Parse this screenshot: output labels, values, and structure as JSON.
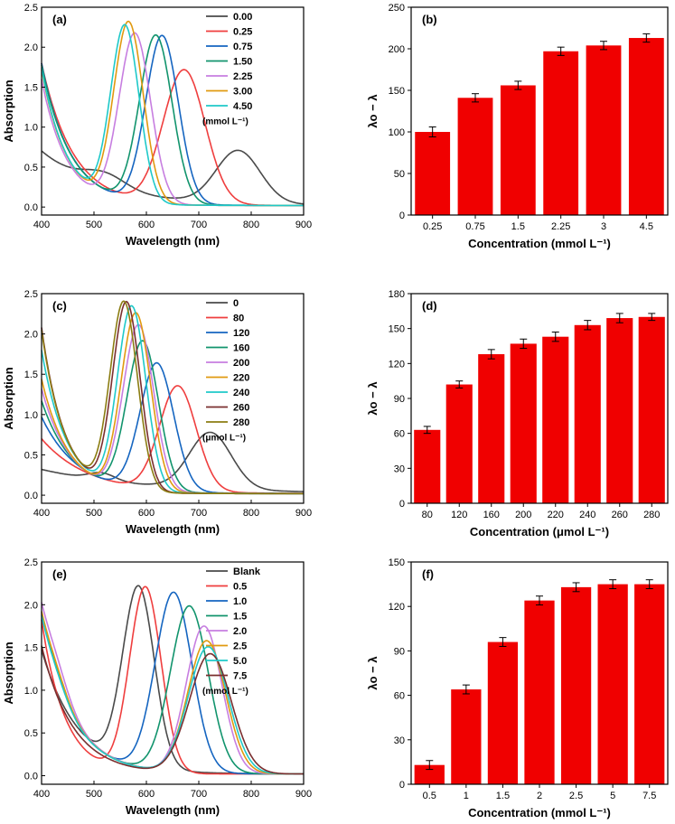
{
  "colors": {
    "c1": "#4a4a4a",
    "c2": "#ef3e3e",
    "c3": "#1565c0",
    "c4": "#12946d",
    "c5": "#c77ee0",
    "c6": "#e09a10",
    "c7": "#1fc9c9",
    "c8": "#7a2f2f",
    "c9": "#8b7d12",
    "bar": "#f00000"
  },
  "chart_data": [
    {
      "panel": "(a)",
      "type": "line",
      "title": "",
      "xlabel": "Wavelength (nm)",
      "ylabel": "Absorption",
      "xlim": [
        400,
        900
      ],
      "ylim": [
        -0.1,
        2.5
      ],
      "xticks": [
        "400",
        "500",
        "600",
        "700",
        "800",
        "900"
      ],
      "yticks": [
        "0.0",
        "0.5",
        "1.0",
        "1.5",
        "2.0",
        "2.5"
      ],
      "legend_unit": "(mmol L⁻¹)",
      "series": [
        {
          "name": "0.00",
          "color": "#4a4a4a",
          "base": 0.68,
          "tailDecay": 120,
          "peaks": [
            {
              "c": 775,
              "h": 0.66,
              "w": 42
            },
            {
              "c": 520,
              "h": 0.17,
              "w": 40
            }
          ]
        },
        {
          "name": "0.25",
          "color": "#ef3e3e",
          "base": 1.78,
          "tailDecay": 60,
          "peaks": [
            {
              "c": 672,
              "h": 1.68,
              "w": 40
            }
          ]
        },
        {
          "name": "0.75",
          "color": "#1565c0",
          "base": 1.78,
          "tailDecay": 55,
          "peaks": [
            {
              "c": 630,
              "h": 2.1,
              "w": 31
            }
          ]
        },
        {
          "name": "1.50",
          "color": "#12946d",
          "base": 1.76,
          "tailDecay": 55,
          "peaks": [
            {
              "c": 618,
              "h": 2.1,
              "w": 31
            }
          ]
        },
        {
          "name": "2.25",
          "color": "#c77ee0",
          "base": 1.58,
          "tailDecay": 48,
          "peaks": [
            {
              "c": 578,
              "h": 2.12,
              "w": 30
            }
          ]
        },
        {
          "name": "3.00",
          "color": "#e09a10",
          "base": 1.7,
          "tailDecay": 48,
          "peaks": [
            {
              "c": 566,
              "h": 2.25,
              "w": 28
            }
          ]
        },
        {
          "name": "4.50",
          "color": "#1fc9c9",
          "base": 1.72,
          "tailDecay": 48,
          "peaks": [
            {
              "c": 559,
              "h": 2.2,
              "w": 27
            }
          ]
        }
      ]
    },
    {
      "panel": "(b)",
      "type": "bar",
      "title": "",
      "xlabel": "Concentration (mmol L⁻¹)",
      "ylabel": "λo − λ",
      "ylim": [
        0,
        250
      ],
      "yticks": [
        "0",
        "50",
        "100",
        "150",
        "200",
        "250"
      ],
      "categories": [
        "0.25",
        "0.75",
        "1.5",
        "2.25",
        "3",
        "4.5"
      ],
      "values": [
        100,
        141,
        156,
        197,
        204,
        213
      ],
      "errors": [
        6,
        5,
        5,
        5,
        5,
        5
      ]
    },
    {
      "panel": "(c)",
      "type": "line",
      "title": "",
      "xlabel": "Wavelength (nm)",
      "ylabel": "Absorption",
      "xlim": [
        400,
        900
      ],
      "ylim": [
        -0.1,
        2.5
      ],
      "xticks": [
        "400",
        "500",
        "600",
        "700",
        "800",
        "900"
      ],
      "yticks": [
        "0.0",
        "0.5",
        "1.0",
        "1.5",
        "2.0",
        "2.5"
      ],
      "legend_unit": "(μmol L⁻¹)",
      "series": [
        {
          "name": "0",
          "color": "#4a4a4a",
          "base": 0.3,
          "tailDecay": 200,
          "peaks": [
            {
              "c": 722,
              "h": 0.7,
              "w": 40
            },
            {
              "c": 515,
              "h": 0.09,
              "w": 25
            }
          ]
        },
        {
          "name": "80",
          "color": "#ef3e3e",
          "base": 0.68,
          "tailDecay": 90,
          "peaks": [
            {
              "c": 660,
              "h": 1.3,
              "w": 35
            }
          ]
        },
        {
          "name": "120",
          "color": "#1565c0",
          "base": 0.95,
          "tailDecay": 70,
          "peaks": [
            {
              "c": 620,
              "h": 1.58,
              "w": 32
            }
          ]
        },
        {
          "name": "160",
          "color": "#12946d",
          "base": 1.15,
          "tailDecay": 60,
          "peaks": [
            {
              "c": 593,
              "h": 1.85,
              "w": 30
            }
          ]
        },
        {
          "name": "200",
          "color": "#c77ee0",
          "base": 1.3,
          "tailDecay": 55,
          "peaks": [
            {
              "c": 585,
              "h": 2.05,
              "w": 29
            }
          ]
        },
        {
          "name": "220",
          "color": "#e09a10",
          "base": 1.42,
          "tailDecay": 52,
          "peaks": [
            {
              "c": 580,
              "h": 2.2,
              "w": 28
            }
          ]
        },
        {
          "name": "240",
          "color": "#1fc9c9",
          "base": 1.78,
          "tailDecay": 48,
          "peaks": [
            {
              "c": 572,
              "h": 2.28,
              "w": 27
            }
          ]
        },
        {
          "name": "260",
          "color": "#7a2f2f",
          "base": 2.06,
          "tailDecay": 44,
          "peaks": [
            {
              "c": 562,
              "h": 2.33,
              "w": 26
            }
          ]
        },
        {
          "name": "280",
          "color": "#8b7d12",
          "base": 2.03,
          "tailDecay": 44,
          "peaks": [
            {
              "c": 557,
              "h": 2.33,
              "w": 26
            }
          ]
        }
      ]
    },
    {
      "panel": "(d)",
      "type": "bar",
      "title": "",
      "xlabel": "Concentration (μmol L⁻¹)",
      "ylabel": "λo − λ",
      "ylim": [
        0,
        180
      ],
      "yticks": [
        "0",
        "30",
        "60",
        "90",
        "120",
        "150",
        "180"
      ],
      "categories": [
        "80",
        "120",
        "160",
        "200",
        "220",
        "240",
        "260",
        "280"
      ],
      "values": [
        63,
        102,
        128,
        137,
        143,
        153,
        159,
        160
      ],
      "errors": [
        3,
        3,
        4,
        4,
        4,
        4,
        4,
        3
      ]
    },
    {
      "panel": "(e)",
      "type": "line",
      "title": "",
      "xlabel": "Wavelength (nm)",
      "ylabel": "Absorption",
      "xlim": [
        400,
        900
      ],
      "ylim": [
        -0.1,
        2.5
      ],
      "xticks": [
        "400",
        "500",
        "600",
        "700",
        "800",
        "900"
      ],
      "yticks": [
        "0.0",
        "0.5",
        "1.0",
        "1.5",
        "2.0",
        "2.5"
      ],
      "legend_unit": "(mmol L⁻¹)",
      "series": [
        {
          "name": "Blank",
          "color": "#4a4a4a",
          "base": 1.45,
          "tailDecay": 70,
          "peaks": [
            {
              "c": 585,
              "h": 2.1,
              "w": 30
            }
          ]
        },
        {
          "name": "0.5",
          "color": "#ef3e3e",
          "base": 1.8,
          "tailDecay": 45,
          "peaks": [
            {
              "c": 598,
              "h": 2.17,
              "w": 30
            }
          ]
        },
        {
          "name": "1.0",
          "color": "#1565c0",
          "base": 1.78,
          "tailDecay": 60,
          "peaks": [
            {
              "c": 652,
              "h": 2.1,
              "w": 35
            },
            {
              "c": 425,
              "h": 0.15,
              "w": 25
            }
          ]
        },
        {
          "name": "1.5",
          "color": "#12946d",
          "base": 1.8,
          "tailDecay": 60,
          "peaks": [
            {
              "c": 682,
              "h": 1.95,
              "w": 36
            },
            {
              "c": 425,
              "h": 0.15,
              "w": 25
            }
          ]
        },
        {
          "name": "2.0",
          "color": "#c77ee0",
          "base": 1.85,
          "tailDecay": 60,
          "peaks": [
            {
              "c": 710,
              "h": 1.72,
              "w": 34
            },
            {
              "c": 425,
              "h": 0.25,
              "w": 26
            }
          ]
        },
        {
          "name": "2.5",
          "color": "#e09a10",
          "base": 1.8,
          "tailDecay": 60,
          "peaks": [
            {
              "c": 715,
              "h": 1.55,
              "w": 36
            },
            {
              "c": 425,
              "h": 0.17,
              "w": 25
            }
          ]
        },
        {
          "name": "5.0",
          "color": "#1fc9c9",
          "base": 1.78,
          "tailDecay": 60,
          "peaks": [
            {
              "c": 718,
              "h": 1.48,
              "w": 38
            },
            {
              "c": 425,
              "h": 0.12,
              "w": 25
            }
          ]
        },
        {
          "name": "7.5",
          "color": "#7a2f2f",
          "base": 1.5,
          "tailDecay": 60,
          "peaks": [
            {
              "c": 722,
              "h": 1.4,
              "w": 40
            }
          ]
        }
      ]
    },
    {
      "panel": "(f)",
      "type": "bar",
      "title": "",
      "xlabel": "Concentration (mmol L⁻¹)",
      "ylabel": "λo − λ",
      "ylim": [
        0,
        150
      ],
      "yticks": [
        "0",
        "30",
        "60",
        "90",
        "120",
        "150"
      ],
      "categories": [
        "0.5",
        "1",
        "1.5",
        "2",
        "2.5",
        "5",
        "7.5"
      ],
      "values": [
        13,
        64,
        96,
        124,
        133,
        135,
        135
      ],
      "errors": [
        3,
        3,
        3,
        3,
        3,
        3,
        3
      ]
    }
  ]
}
